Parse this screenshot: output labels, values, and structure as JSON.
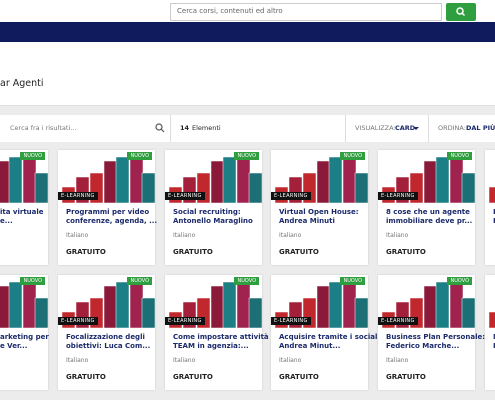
{
  "header": {
    "search_placeholder": "Cerca corsi, contenuti ed altro"
  },
  "page_title": "ar Agenti",
  "toolbar": {
    "search_placeholder": "Cerca fra i risultati...",
    "count": "14",
    "count_label": "Elementi",
    "view_label": "VISUALIZZA:",
    "view_value": "CARD",
    "sort_label": "ORDINA:",
    "sort_value": "DAL PIÙ R"
  },
  "cards": [
    [
      {
        "title_lines": [
          "ita virtuale",
          "e..."
        ],
        "badge": "NUOVO"
      },
      {
        "title_lines": [
          "Programmi per video",
          "conferenze, agenda, ..."
        ],
        "badge": "NUOVO",
        "format": "E-LEARNING",
        "language": "Italiano",
        "price": "GRATUITO"
      },
      {
        "title_lines": [
          "Social recruiting:",
          "Antonello Maraglino"
        ],
        "badge": "NUOVO",
        "format": "E-LEARNING",
        "language": "Italiano",
        "price": "GRATUITO"
      },
      {
        "title_lines": [
          "Virtual Open House:",
          "Andrea Minuti"
        ],
        "badge": "NUOVO",
        "format": "E-LEARNING",
        "language": "Italiano",
        "price": "GRATUITO"
      },
      {
        "title_lines": [
          "8 cose che un agente",
          "immobiliare deve pr..."
        ],
        "badge": "NUOVO",
        "format": "E-LEARNING",
        "language": "Italiano",
        "price": "GRATUITO"
      },
      {
        "title_lines": [
          "L",
          "L"
        ]
      }
    ],
    [
      {
        "title_lines": [
          "arketing per",
          "e Ver..."
        ],
        "badge": "NUOVO"
      },
      {
        "title_lines": [
          "Focalizzazione degli",
          "obiettivi: Luca Com..."
        ],
        "badge": "NUOVO",
        "format": "E-LEARNING",
        "language": "Italiano",
        "price": "GRATUITO"
      },
      {
        "title_lines": [
          "Come impostare attività",
          "TEAM in agenzia:..."
        ],
        "badge": "NUOVO",
        "format": "E-LEARNING",
        "language": "Italiano",
        "price": "GRATUITO"
      },
      {
        "title_lines": [
          "Acquisire tramite i social:",
          "Andrea Minut..."
        ],
        "badge": "NUOVO",
        "format": "E-LEARNING",
        "language": "Italiano",
        "price": "GRATUITO"
      },
      {
        "title_lines": [
          "Business Plan Personale:",
          "Federico Marche..."
        ],
        "badge": "NUOVO",
        "format": "E-LEARNING",
        "language": "Italiano",
        "price": "GRATUITO"
      },
      {
        "title_lines": [
          "M",
          "L"
        ]
      }
    ]
  ]
}
